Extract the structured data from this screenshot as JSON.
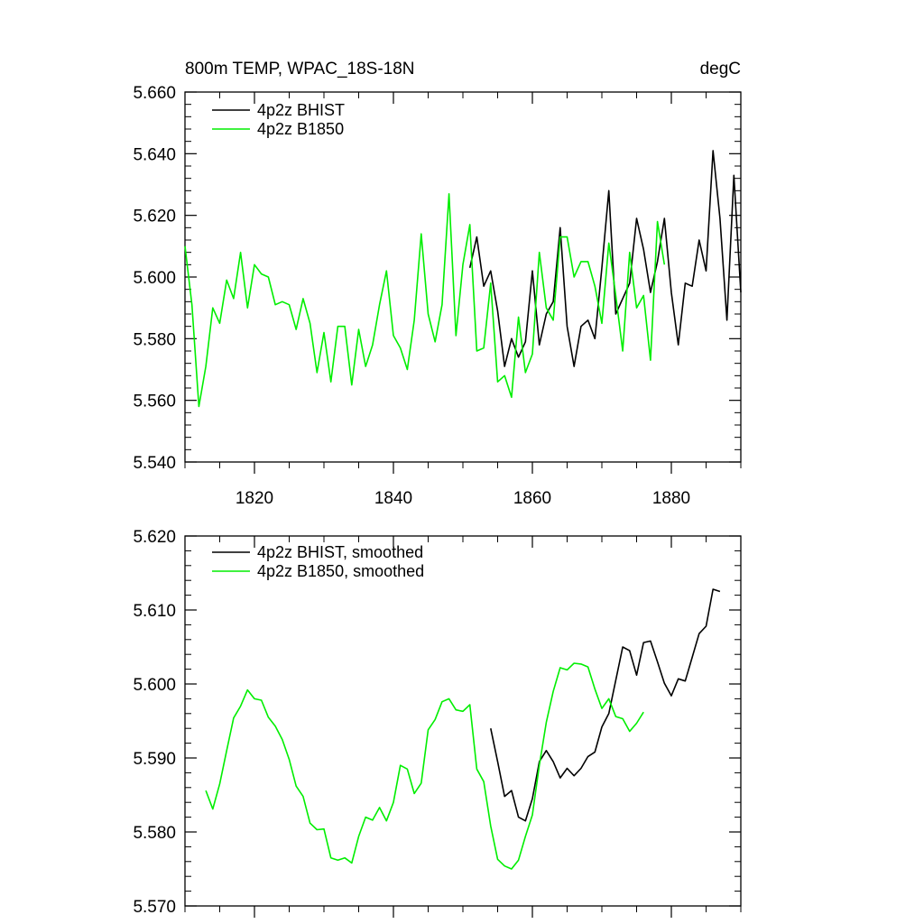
{
  "chart_data": [
    {
      "type": "line",
      "title": "800m TEMP, WPAC_18S-18N",
      "units": "degC",
      "xlim": [
        1810,
        1890
      ],
      "ylim": [
        5.54,
        5.66
      ],
      "x_ticks": [
        1820,
        1840,
        1860,
        1880
      ],
      "x_tick_labels": [
        "1820",
        "1840",
        "1860",
        "1880"
      ],
      "y_ticks": [
        5.54,
        5.56,
        5.58,
        5.6,
        5.62,
        5.64,
        5.66
      ],
      "y_tick_labels": [
        "5.540",
        "5.560",
        "5.580",
        "5.600",
        "5.620",
        "5.640",
        "5.660"
      ],
      "grid": false,
      "legend": "top-left",
      "colors": [
        "#000000",
        "#00ee00"
      ],
      "series": [
        {
          "name": "4p2z BHIST",
          "color": "#000000",
          "x": [
            1851,
            1852,
            1853,
            1854,
            1855,
            1856,
            1857,
            1858,
            1859,
            1860,
            1861,
            1862,
            1863,
            1864,
            1865,
            1866,
            1867,
            1868,
            1869,
            1870,
            1871,
            1872,
            1873,
            1874,
            1875,
            1876,
            1877,
            1878,
            1879,
            1880,
            1881,
            1882,
            1883,
            1884,
            1885,
            1886,
            1887,
            1888,
            1889,
            1890
          ],
          "y": [
            5.603,
            5.613,
            5.597,
            5.602,
            5.589,
            5.571,
            5.58,
            5.574,
            5.579,
            5.602,
            5.578,
            5.588,
            5.592,
            5.616,
            5.584,
            5.571,
            5.584,
            5.586,
            5.58,
            5.603,
            5.628,
            5.588,
            5.593,
            5.598,
            5.619,
            5.609,
            5.595,
            5.605,
            5.619,
            5.595,
            5.578,
            5.598,
            5.597,
            5.612,
            5.602,
            5.641,
            5.619,
            5.586,
            5.633,
            5.595
          ]
        },
        {
          "name": "4p2z B1850",
          "color": "#00ee00",
          "x": [
            1810,
            1811,
            1812,
            1813,
            1814,
            1815,
            1816,
            1817,
            1818,
            1819,
            1820,
            1821,
            1822,
            1823,
            1824,
            1825,
            1826,
            1827,
            1828,
            1829,
            1830,
            1831,
            1832,
            1833,
            1834,
            1835,
            1836,
            1837,
            1838,
            1839,
            1840,
            1841,
            1842,
            1843,
            1844,
            1845,
            1846,
            1847,
            1848,
            1849,
            1850,
            1851,
            1852,
            1853,
            1854,
            1855,
            1856,
            1857,
            1858,
            1859,
            1860,
            1861,
            1862,
            1863,
            1864,
            1865,
            1866,
            1867,
            1868,
            1869,
            1870,
            1871,
            1872,
            1873,
            1874,
            1875,
            1876,
            1877,
            1878,
            1879
          ],
          "y": [
            5.61,
            5.591,
            5.558,
            5.571,
            5.59,
            5.585,
            5.599,
            5.593,
            5.608,
            5.59,
            5.604,
            5.601,
            5.6,
            5.591,
            5.592,
            5.591,
            5.583,
            5.593,
            5.585,
            5.569,
            5.582,
            5.566,
            5.584,
            5.584,
            5.565,
            5.583,
            5.571,
            5.578,
            5.591,
            5.602,
            5.581,
            5.577,
            5.57,
            5.586,
            5.614,
            5.588,
            5.579,
            5.591,
            5.627,
            5.581,
            5.604,
            5.617,
            5.576,
            5.577,
            5.598,
            5.566,
            5.568,
            5.561,
            5.587,
            5.569,
            5.575,
            5.608,
            5.59,
            5.586,
            5.613,
            5.613,
            5.6,
            5.605,
            5.605,
            5.597,
            5.585,
            5.611,
            5.594,
            5.576,
            5.608,
            5.59,
            5.594,
            5.573,
            5.618,
            5.604
          ]
        }
      ]
    },
    {
      "type": "line",
      "xlim": [
        1810,
        1890
      ],
      "ylim": [
        5.57,
        5.62
      ],
      "x_ticks": [
        1820,
        1840,
        1860,
        1880
      ],
      "y_ticks": [
        5.57,
        5.58,
        5.59,
        5.6,
        5.61,
        5.62
      ],
      "y_tick_labels": [
        "5.570",
        "5.580",
        "5.590",
        "5.600",
        "5.610",
        "5.620"
      ],
      "grid": false,
      "legend": "top-left",
      "series": [
        {
          "name": "4p2z BHIST, smoothed",
          "color": "#000000",
          "x": [
            1854,
            1855,
            1856,
            1857,
            1858,
            1859,
            1860,
            1861,
            1862,
            1863,
            1864,
            1865,
            1866,
            1867,
            1868,
            1869,
            1870,
            1871,
            1872,
            1873,
            1874,
            1875,
            1876,
            1877,
            1878,
            1879,
            1880,
            1881,
            1882,
            1883,
            1884,
            1885,
            1886,
            1887
          ],
          "y": [
            5.594,
            5.5895,
            5.5848,
            5.5856,
            5.582,
            5.5815,
            5.5845,
            5.5895,
            5.591,
            5.5895,
            5.5873,
            5.5886,
            5.5876,
            5.5886,
            5.5902,
            5.5908,
            5.5942,
            5.596,
            5.6005,
            5.605,
            5.6045,
            5.6012,
            5.6056,
            5.6058,
            5.603,
            5.6001,
            5.5984,
            5.6007,
            5.6004,
            5.6036,
            5.6068,
            5.6078,
            5.6128,
            5.6125
          ]
        },
        {
          "name": "4p2z B1850, smoothed",
          "color": "#00ee00",
          "x": [
            1813,
            1814,
            1815,
            1816,
            1817,
            1818,
            1819,
            1820,
            1821,
            1822,
            1823,
            1824,
            1825,
            1826,
            1827,
            1828,
            1829,
            1830,
            1831,
            1832,
            1833,
            1834,
            1835,
            1836,
            1837,
            1838,
            1839,
            1840,
            1841,
            1842,
            1843,
            1844,
            1845,
            1846,
            1847,
            1848,
            1849,
            1850,
            1851,
            1852,
            1853,
            1854,
            1855,
            1856,
            1857,
            1858,
            1859,
            1860,
            1861,
            1862,
            1863,
            1864,
            1865,
            1866,
            1867,
            1868,
            1869,
            1870,
            1871,
            1872,
            1873,
            1874,
            1875,
            1876
          ],
          "y": [
            5.5856,
            5.5831,
            5.5865,
            5.591,
            5.5954,
            5.597,
            5.5992,
            5.598,
            5.5978,
            5.5955,
            5.5943,
            5.5925,
            5.5898,
            5.5862,
            5.5848,
            5.5812,
            5.5803,
            5.5804,
            5.5765,
            5.5762,
            5.5765,
            5.5758,
            5.5794,
            5.582,
            5.5816,
            5.5833,
            5.5815,
            5.584,
            5.589,
            5.5885,
            5.5852,
            5.5866,
            5.5938,
            5.5952,
            5.5976,
            5.598,
            5.5965,
            5.5963,
            5.5972,
            5.5885,
            5.5868,
            5.5808,
            5.5763,
            5.5754,
            5.575,
            5.5762,
            5.5794,
            5.5823,
            5.589,
            5.5948,
            5.599,
            5.6022,
            5.6019,
            5.6028,
            5.6027,
            5.6023,
            5.5993,
            5.5967,
            5.598,
            5.5956,
            5.5953,
            5.5936,
            5.5947,
            5.5962
          ]
        }
      ]
    }
  ]
}
